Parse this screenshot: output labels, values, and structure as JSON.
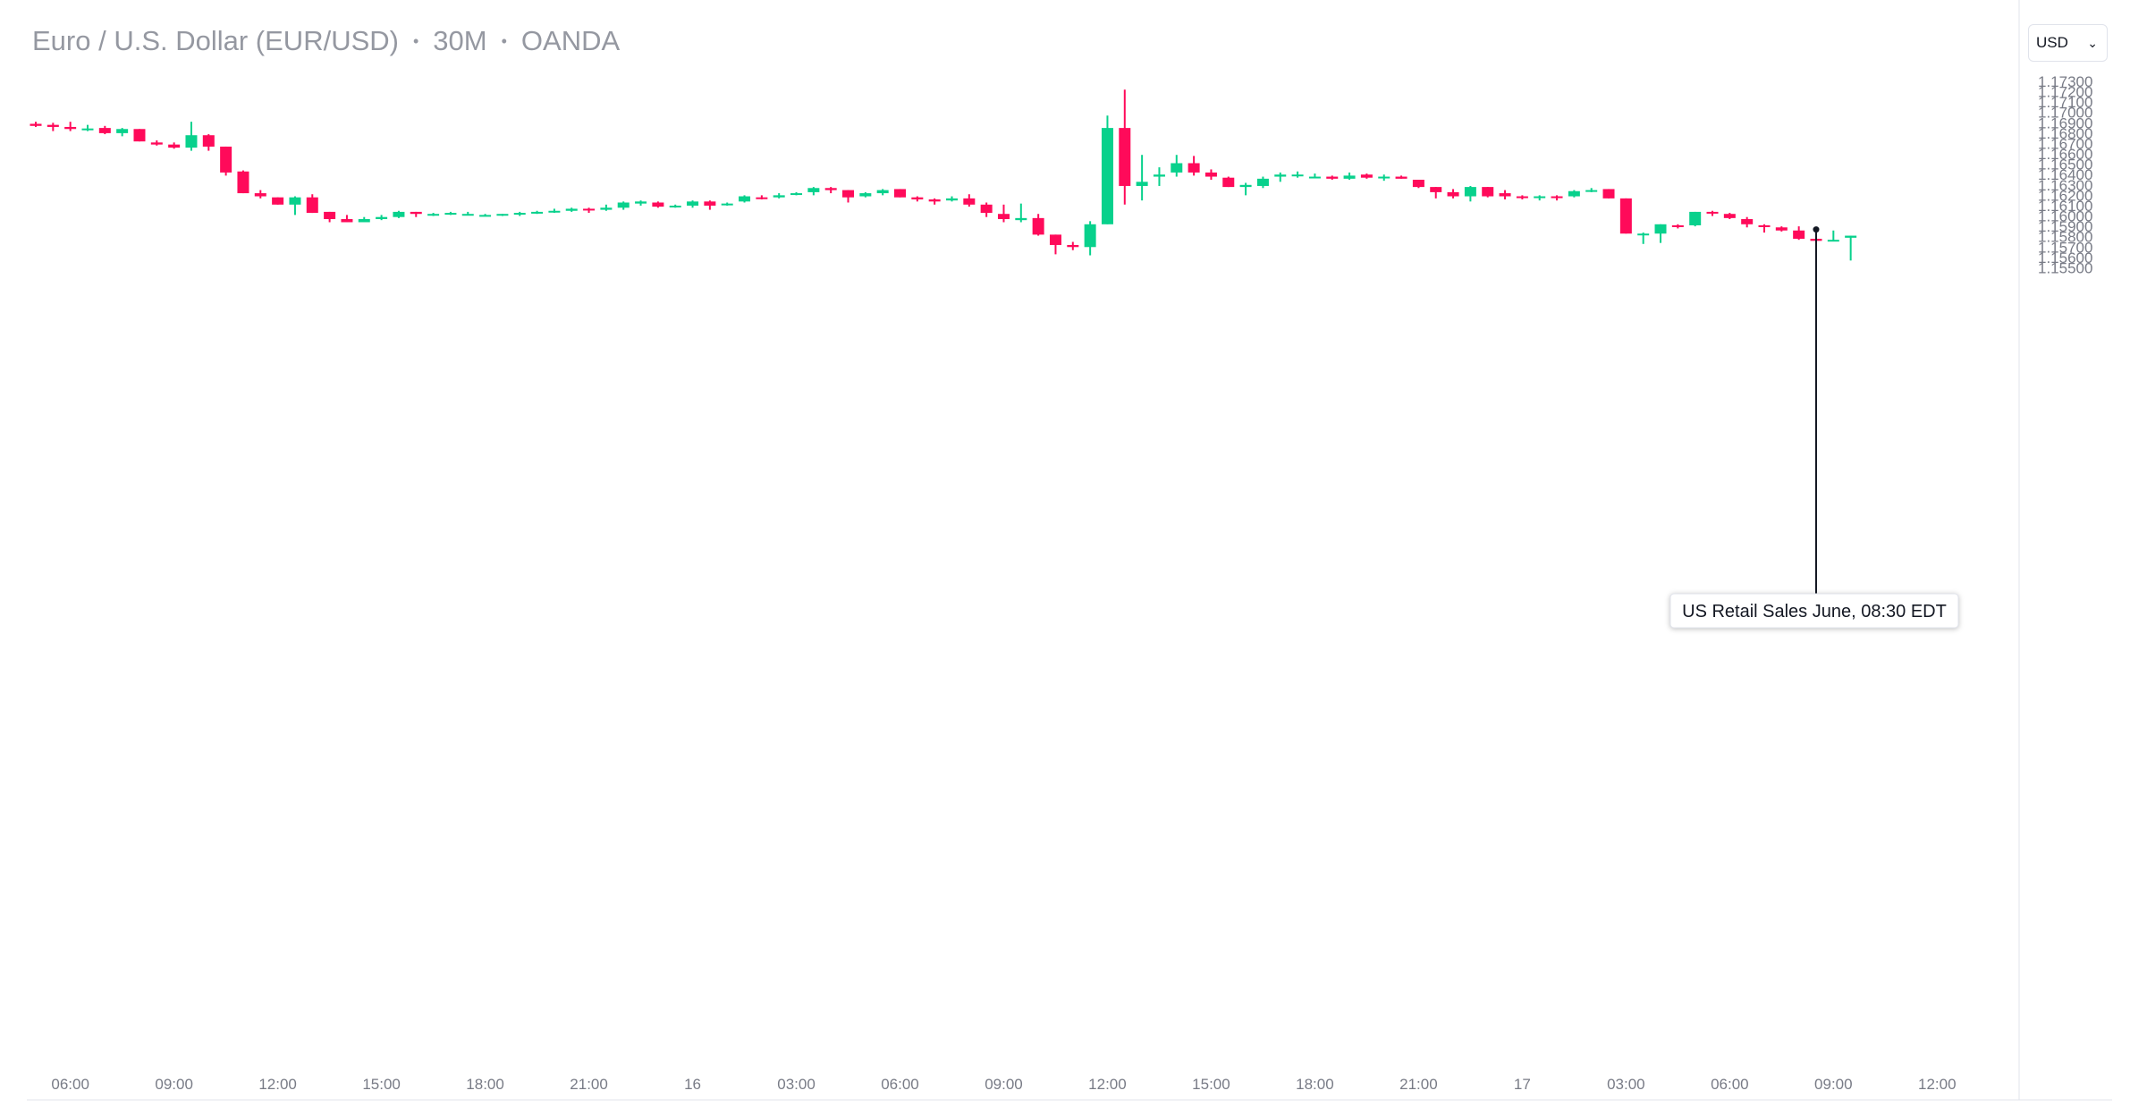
{
  "header": {
    "symbol_name": "Euro / U.S. Dollar (EUR/USD)",
    "interval": "30M",
    "source": "OANDA",
    "separator": "•"
  },
  "currency_select": {
    "value": "USD",
    "chevron_icon": "chevron-down-icon"
  },
  "colors": {
    "up": "#08d18c",
    "down": "#ff0a5a",
    "axis_text": "#787b86",
    "title_text": "#9598a1",
    "border": "#e0e3eb"
  },
  "chart_data": {
    "type": "candlestick",
    "instrument": "EUR/USD",
    "interval": "30M",
    "grid": false,
    "y_axis": {
      "position": "right",
      "ticks": [
        "1.17300",
        "1.17200",
        "1.17100",
        "1.17000",
        "1.16900",
        "1.16800",
        "1.16700",
        "1.16600",
        "1.16500",
        "1.16400",
        "1.16300",
        "1.16200",
        "1.16100",
        "1.16000",
        "1.15900",
        "1.15800",
        "1.15700",
        "1.15600",
        "1.15500"
      ],
      "range": [
        1.1547,
        1.1733
      ]
    },
    "x_axis": {
      "ticks": [
        "06:00",
        "09:00",
        "12:00",
        "15:00",
        "18:00",
        "21:00",
        "16",
        "03:00",
        "06:00",
        "09:00",
        "12:00",
        "15:00",
        "18:00",
        "21:00",
        "17",
        "03:00",
        "06:00",
        "09:00",
        "12:00"
      ],
      "bar_interval_minutes": 30,
      "first_bar_time": "05:00",
      "last_bar_time": "08:30"
    },
    "candles": [
      {
        "o": 1.1689,
        "h": 1.1691,
        "l": 1.1686,
        "c": 1.1687
      },
      {
        "o": 1.1688,
        "h": 1.169,
        "l": 1.1682,
        "c": 1.1686
      },
      {
        "o": 1.1686,
        "h": 1.1691,
        "l": 1.1682,
        "c": 1.1684
      },
      {
        "o": 1.1684,
        "h": 1.1688,
        "l": 1.1682,
        "c": 1.16845
      },
      {
        "o": 1.1685,
        "h": 1.1687,
        "l": 1.1679,
        "c": 1.168
      },
      {
        "o": 1.168,
        "h": 1.1685,
        "l": 1.1677,
        "c": 1.1684
      },
      {
        "o": 1.1684,
        "h": 1.1684,
        "l": 1.1672,
        "c": 1.1672
      },
      {
        "o": 1.1671,
        "h": 1.1673,
        "l": 1.1668,
        "c": 1.1669
      },
      {
        "o": 1.1669,
        "h": 1.1671,
        "l": 1.1665,
        "c": 1.1666
      },
      {
        "o": 1.1666,
        "h": 1.1691,
        "l": 1.1663,
        "c": 1.1678
      },
      {
        "o": 1.1678,
        "h": 1.1679,
        "l": 1.1663,
        "c": 1.1667
      },
      {
        "o": 1.1667,
        "h": 1.1667,
        "l": 1.1639,
        "c": 1.1642
      },
      {
        "o": 1.1643,
        "h": 1.1644,
        "l": 1.1622,
        "c": 1.1622
      },
      {
        "o": 1.1622,
        "h": 1.1625,
        "l": 1.1617,
        "c": 1.1619
      },
      {
        "o": 1.1618,
        "h": 1.1618,
        "l": 1.1611,
        "c": 1.1611
      },
      {
        "o": 1.1611,
        "h": 1.1619,
        "l": 1.1601,
        "c": 1.1618
      },
      {
        "o": 1.1618,
        "h": 1.1621,
        "l": 1.1603,
        "c": 1.1603
      },
      {
        "o": 1.1604,
        "h": 1.1604,
        "l": 1.1594,
        "c": 1.1597
      },
      {
        "o": 1.1597,
        "h": 1.1601,
        "l": 1.1594,
        "c": 1.1594
      },
      {
        "o": 1.1594,
        "h": 1.1599,
        "l": 1.1594,
        "c": 1.1597
      },
      {
        "o": 1.1597,
        "h": 1.1601,
        "l": 1.1596,
        "c": 1.1599
      },
      {
        "o": 1.1599,
        "h": 1.1605,
        "l": 1.1598,
        "c": 1.1604
      },
      {
        "o": 1.1604,
        "h": 1.1604,
        "l": 1.1599,
        "c": 1.1602
      },
      {
        "o": 1.1601,
        "h": 1.1603,
        "l": 1.16,
        "c": 1.1602
      },
      {
        "o": 1.1602,
        "h": 1.1604,
        "l": 1.1601,
        "c": 1.1603
      },
      {
        "o": 1.1602,
        "h": 1.1604,
        "l": 1.1601,
        "c": 1.1602
      },
      {
        "o": 1.1601,
        "h": 1.1602,
        "l": 1.16,
        "c": 1.1601
      },
      {
        "o": 1.1601,
        "h": 1.1602,
        "l": 1.16,
        "c": 1.1602
      },
      {
        "o": 1.1602,
        "h": 1.1604,
        "l": 1.16,
        "c": 1.1603
      },
      {
        "o": 1.1603,
        "h": 1.1605,
        "l": 1.1602,
        "c": 1.1604
      },
      {
        "o": 1.1604,
        "h": 1.1607,
        "l": 1.1603,
        "c": 1.1605
      },
      {
        "o": 1.1605,
        "h": 1.1608,
        "l": 1.1604,
        "c": 1.1607
      },
      {
        "o": 1.1607,
        "h": 1.1608,
        "l": 1.1603,
        "c": 1.1606
      },
      {
        "o": 1.1606,
        "h": 1.1611,
        "l": 1.1605,
        "c": 1.1608
      },
      {
        "o": 1.1608,
        "h": 1.1614,
        "l": 1.1606,
        "c": 1.1613
      },
      {
        "o": 1.1612,
        "h": 1.1615,
        "l": 1.161,
        "c": 1.1614
      },
      {
        "o": 1.1613,
        "h": 1.1614,
        "l": 1.1608,
        "c": 1.1609
      },
      {
        "o": 1.1609,
        "h": 1.1611,
        "l": 1.1608,
        "c": 1.161
      },
      {
        "o": 1.161,
        "h": 1.1615,
        "l": 1.1608,
        "c": 1.1614
      },
      {
        "o": 1.1614,
        "h": 1.1615,
        "l": 1.1606,
        "c": 1.161
      },
      {
        "o": 1.1611,
        "h": 1.1613,
        "l": 1.161,
        "c": 1.1612
      },
      {
        "o": 1.1614,
        "h": 1.162,
        "l": 1.1613,
        "c": 1.1619
      },
      {
        "o": 1.1618,
        "h": 1.162,
        "l": 1.1616,
        "c": 1.1617
      },
      {
        "o": 1.1618,
        "h": 1.1622,
        "l": 1.1617,
        "c": 1.162
      },
      {
        "o": 1.1621,
        "h": 1.1623,
        "l": 1.162,
        "c": 1.1622
      },
      {
        "o": 1.1623,
        "h": 1.1628,
        "l": 1.162,
        "c": 1.1627
      },
      {
        "o": 1.1627,
        "h": 1.1628,
        "l": 1.1622,
        "c": 1.1625
      },
      {
        "o": 1.1625,
        "h": 1.1625,
        "l": 1.1613,
        "c": 1.1618
      },
      {
        "o": 1.1619,
        "h": 1.1623,
        "l": 1.1618,
        "c": 1.1622
      },
      {
        "o": 1.1622,
        "h": 1.1626,
        "l": 1.162,
        "c": 1.1625
      },
      {
        "o": 1.1626,
        "h": 1.1626,
        "l": 1.1618,
        "c": 1.1618
      },
      {
        "o": 1.1618,
        "h": 1.1619,
        "l": 1.1614,
        "c": 1.1616
      },
      {
        "o": 1.1616,
        "h": 1.1617,
        "l": 1.1611,
        "c": 1.1614
      },
      {
        "o": 1.1615,
        "h": 1.1619,
        "l": 1.1614,
        "c": 1.1617
      },
      {
        "o": 1.1617,
        "h": 1.1621,
        "l": 1.1609,
        "c": 1.1611
      },
      {
        "o": 1.1611,
        "h": 1.1613,
        "l": 1.1599,
        "c": 1.1603
      },
      {
        "o": 1.1602,
        "h": 1.1611,
        "l": 1.1594,
        "c": 1.1597
      },
      {
        "o": 1.1596,
        "h": 1.1612,
        "l": 1.1594,
        "c": 1.1598
      },
      {
        "o": 1.1598,
        "h": 1.1602,
        "l": 1.1581,
        "c": 1.1582
      },
      {
        "o": 1.1582,
        "h": 1.1582,
        "l": 1.1563,
        "c": 1.1572
      },
      {
        "o": 1.1572,
        "h": 1.1575,
        "l": 1.1567,
        "c": 1.157
      },
      {
        "o": 1.157,
        "h": 1.1595,
        "l": 1.1562,
        "c": 1.1592
      },
      {
        "o": 1.1592,
        "h": 1.1697,
        "l": 1.1592,
        "c": 1.1685
      },
      {
        "o": 1.1685,
        "h": 1.1722,
        "l": 1.1611,
        "c": 1.1629
      },
      {
        "o": 1.1629,
        "h": 1.1659,
        "l": 1.1615,
        "c": 1.1633
      },
      {
        "o": 1.1638,
        "h": 1.1647,
        "l": 1.1629,
        "c": 1.164
      },
      {
        "o": 1.1642,
        "h": 1.1659,
        "l": 1.1638,
        "c": 1.1651
      },
      {
        "o": 1.1651,
        "h": 1.1658,
        "l": 1.1639,
        "c": 1.1642
      },
      {
        "o": 1.1642,
        "h": 1.1645,
        "l": 1.1635,
        "c": 1.1638
      },
      {
        "o": 1.1637,
        "h": 1.1638,
        "l": 1.1628,
        "c": 1.1628
      },
      {
        "o": 1.1628,
        "h": 1.1632,
        "l": 1.162,
        "c": 1.163
      },
      {
        "o": 1.1629,
        "h": 1.1638,
        "l": 1.1627,
        "c": 1.1636
      },
      {
        "o": 1.1638,
        "h": 1.1642,
        "l": 1.1633,
        "c": 1.164
      },
      {
        "o": 1.164,
        "h": 1.1643,
        "l": 1.1637,
        "c": 1.164
      },
      {
        "o": 1.1638,
        "h": 1.1641,
        "l": 1.1637,
        "c": 1.1638
      },
      {
        "o": 1.1638,
        "h": 1.1639,
        "l": 1.1635,
        "c": 1.1636
      },
      {
        "o": 1.1636,
        "h": 1.1642,
        "l": 1.1635,
        "c": 1.1639
      },
      {
        "o": 1.164,
        "h": 1.1641,
        "l": 1.1636,
        "c": 1.1637
      },
      {
        "o": 1.1637,
        "h": 1.164,
        "l": 1.1634,
        "c": 1.1638
      },
      {
        "o": 1.1638,
        "h": 1.1639,
        "l": 1.1636,
        "c": 1.1636
      },
      {
        "o": 1.1635,
        "h": 1.1635,
        "l": 1.1627,
        "c": 1.1628
      },
      {
        "o": 1.1628,
        "h": 1.1628,
        "l": 1.1617,
        "c": 1.1623
      },
      {
        "o": 1.1623,
        "h": 1.1626,
        "l": 1.1617,
        "c": 1.1619
      },
      {
        "o": 1.1619,
        "h": 1.1629,
        "l": 1.1614,
        "c": 1.1628
      },
      {
        "o": 1.1628,
        "h": 1.1628,
        "l": 1.1618,
        "c": 1.1619
      },
      {
        "o": 1.1622,
        "h": 1.1625,
        "l": 1.1616,
        "c": 1.1619
      },
      {
        "o": 1.1619,
        "h": 1.162,
        "l": 1.1616,
        "c": 1.1618
      },
      {
        "o": 1.16185,
        "h": 1.162,
        "l": 1.1615,
        "c": 1.1619
      },
      {
        "o": 1.1619,
        "h": 1.162,
        "l": 1.1615,
        "c": 1.16185
      },
      {
        "o": 1.1619,
        "h": 1.1625,
        "l": 1.1618,
        "c": 1.1624
      },
      {
        "o": 1.1624,
        "h": 1.1627,
        "l": 1.1623,
        "c": 1.1625
      },
      {
        "o": 1.1626,
        "h": 1.1626,
        "l": 1.1617,
        "c": 1.1617
      },
      {
        "o": 1.1617,
        "h": 1.1617,
        "l": 1.1583,
        "c": 1.1583
      },
      {
        "o": 1.1583,
        "h": 1.1584,
        "l": 1.1573,
        "c": 1.1583
      },
      {
        "o": 1.1583,
        "h": 1.1592,
        "l": 1.1574,
        "c": 1.1592
      },
      {
        "o": 1.1591,
        "h": 1.1592,
        "l": 1.1588,
        "c": 1.159
      },
      {
        "o": 1.1591,
        "h": 1.1604,
        "l": 1.159,
        "c": 1.1604
      },
      {
        "o": 1.1604,
        "h": 1.1605,
        "l": 1.16,
        "c": 1.1603
      },
      {
        "o": 1.1602,
        "h": 1.1603,
        "l": 1.1597,
        "c": 1.1598
      },
      {
        "o": 1.1597,
        "h": 1.1599,
        "l": 1.1589,
        "c": 1.1592
      },
      {
        "o": 1.1591,
        "h": 1.1592,
        "l": 1.1584,
        "c": 1.159
      },
      {
        "o": 1.1589,
        "h": 1.159,
        "l": 1.1585,
        "c": 1.1586
      },
      {
        "o": 1.1586,
        "h": 1.159,
        "l": 1.1577,
        "c": 1.1578
      },
      {
        "o": 1.1578,
        "h": 1.158,
        "l": 1.1571,
        "c": 1.1576
      },
      {
        "o": 1.1576,
        "h": 1.1586,
        "l": 1.1576,
        "c": 1.1577
      },
      {
        "o": 1.1579,
        "h": 1.1581,
        "l": 1.1557,
        "c": 1.1581
      }
    ],
    "events": [
      {
        "label": "US Retail Sales June, 08:30 EDT",
        "bar_time": "08:30",
        "price": 1.1587
      }
    ]
  }
}
